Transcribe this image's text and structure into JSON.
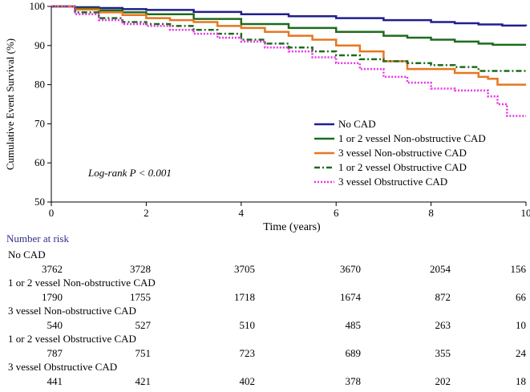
{
  "chart_data": {
    "type": "line",
    "title": "",
    "xlabel": "Time (years)",
    "ylabel": "Cumulative Event Survival (%)",
    "xlim": [
      0,
      10
    ],
    "ylim": [
      50,
      100
    ],
    "xticks": [
      0,
      2,
      4,
      6,
      8,
      10
    ],
    "yticks": [
      50,
      60,
      70,
      80,
      90,
      100
    ],
    "annotation": "Log-rank P < 0.001",
    "legend_position": "lower-right",
    "series": [
      {
        "name": "No CAD",
        "color": "#1f1f8f",
        "dash": "solid",
        "x": [
          0,
          0.5,
          1,
          1.5,
          2,
          3,
          4,
          5,
          6,
          7,
          8,
          8.5,
          9,
          9.5,
          10
        ],
        "y": [
          100,
          99.8,
          99.6,
          99.3,
          99.1,
          98.6,
          98.0,
          97.5,
          97.0,
          96.5,
          96.0,
          95.7,
          95.4,
          95.1,
          95.0
        ]
      },
      {
        "name": "1 or 2 vessel Non-obstructive CAD",
        "color": "#1d6b1d",
        "dash": "solid",
        "x": [
          0,
          0.5,
          1,
          1.5,
          2,
          3,
          4,
          5,
          6,
          7,
          7.5,
          8,
          8.5,
          9,
          9.3,
          10
        ],
        "y": [
          100,
          99.5,
          99.0,
          98.5,
          98.0,
          96.8,
          95.5,
          94.5,
          93.5,
          92.5,
          92.0,
          91.5,
          91.0,
          90.5,
          90.2,
          90.2
        ]
      },
      {
        "name": "3 vessel Non-obstructive CAD",
        "color": "#e8761f",
        "dash": "solid",
        "x": [
          0,
          0.5,
          1,
          1.5,
          2,
          2.5,
          3,
          3.5,
          4,
          4.5,
          5,
          5.5,
          6,
          6.5,
          7,
          7.5,
          8,
          8.5,
          9,
          9.2,
          9.4,
          10
        ],
        "y": [
          100,
          99.2,
          98.5,
          97.8,
          97.0,
          96.5,
          96.0,
          95.0,
          94.5,
          93.5,
          92.5,
          91.5,
          90.0,
          88.5,
          86.0,
          84.0,
          84.0,
          83.0,
          82.0,
          81.5,
          80.0,
          80.0
        ]
      },
      {
        "name": "1 or 2 vessel Obstructive CAD",
        "color": "#1d6b1d",
        "dash": "dashdot",
        "x": [
          0,
          0.5,
          1,
          1.5,
          2,
          2.5,
          3,
          3.5,
          4,
          4.5,
          5,
          5.5,
          6,
          6.5,
          7,
          7.5,
          8,
          8.5,
          9,
          10
        ],
        "y": [
          100,
          98.5,
          97.0,
          96.0,
          95.5,
          95.0,
          94.0,
          93.0,
          91.5,
          90.5,
          89.5,
          88.5,
          87.5,
          86.5,
          86.0,
          85.5,
          85.0,
          84.5,
          83.5,
          83.5
        ]
      },
      {
        "name": "3 vessel Obstructive CAD",
        "color": "#e833e8",
        "dash": "dotted",
        "x": [
          0,
          0.5,
          1,
          1.5,
          2,
          2.5,
          3,
          3.5,
          4,
          4.5,
          5,
          5.5,
          6,
          6.5,
          7,
          7.5,
          8,
          8.5,
          9,
          9.2,
          9.4,
          9.6,
          10
        ],
        "y": [
          100,
          98.0,
          96.5,
          95.5,
          95.0,
          94.0,
          93.0,
          92.0,
          91.0,
          89.5,
          88.5,
          87.0,
          85.5,
          84.0,
          82.0,
          80.5,
          79.0,
          78.5,
          78.5,
          77.0,
          75.0,
          72.0,
          72.0
        ]
      }
    ]
  },
  "risk_table": {
    "title": "Number at risk",
    "groups": [
      {
        "label": "No CAD",
        "values": [
          "3762",
          "3728",
          "3705",
          "3670",
          "2054",
          "156"
        ]
      },
      {
        "label": "1 or 2 vessel Non-obstructive CAD",
        "values": [
          "1790",
          "1755",
          "1718",
          "1674",
          "872",
          "66"
        ]
      },
      {
        "label": "3 vessel Non-obstructive CAD",
        "values": [
          "540",
          "527",
          "510",
          "485",
          "263",
          "10"
        ]
      },
      {
        "label": "1 or 2 vessel Obstructive CAD",
        "values": [
          "787",
          "751",
          "723",
          "689",
          "355",
          "24"
        ]
      },
      {
        "label": "3 vessel Obstructive CAD",
        "values": [
          "441",
          "421",
          "402",
          "378",
          "202",
          "18"
        ]
      }
    ]
  }
}
